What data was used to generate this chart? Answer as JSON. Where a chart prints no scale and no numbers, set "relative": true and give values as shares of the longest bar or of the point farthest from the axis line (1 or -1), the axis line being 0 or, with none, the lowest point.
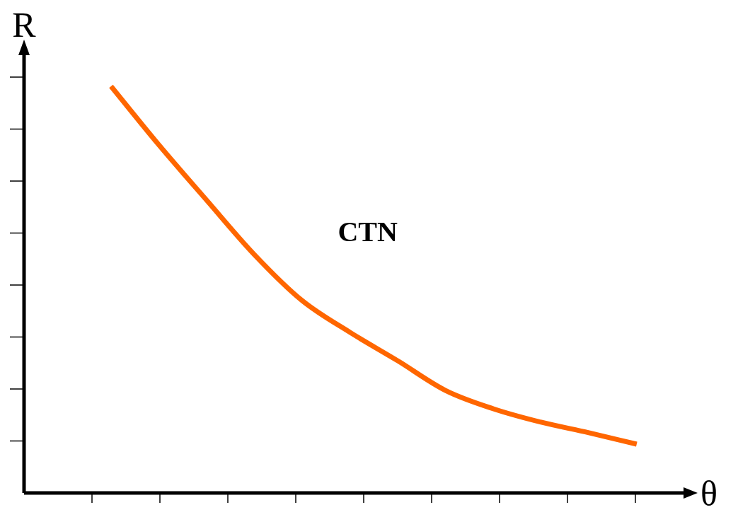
{
  "chart_data": {
    "type": "line",
    "relative": true,
    "xlabel": "θ",
    "ylabel": "R",
    "annotations": [
      "CTN"
    ],
    "categories": [
      null,
      null,
      null,
      null,
      null,
      null,
      null,
      null,
      null,
      null,
      null,
      null
    ],
    "series": [
      {
        "color": "#ff6600",
        "values": [
          1.0,
          0.856,
          0.72,
          0.586,
          0.473,
          0.395,
          0.325,
          0.252,
          0.207,
          0.174,
          0.148,
          0.12
        ]
      }
    ],
    "grid": false,
    "legend": false,
    "marker": "none",
    "line_style": "solid"
  }
}
